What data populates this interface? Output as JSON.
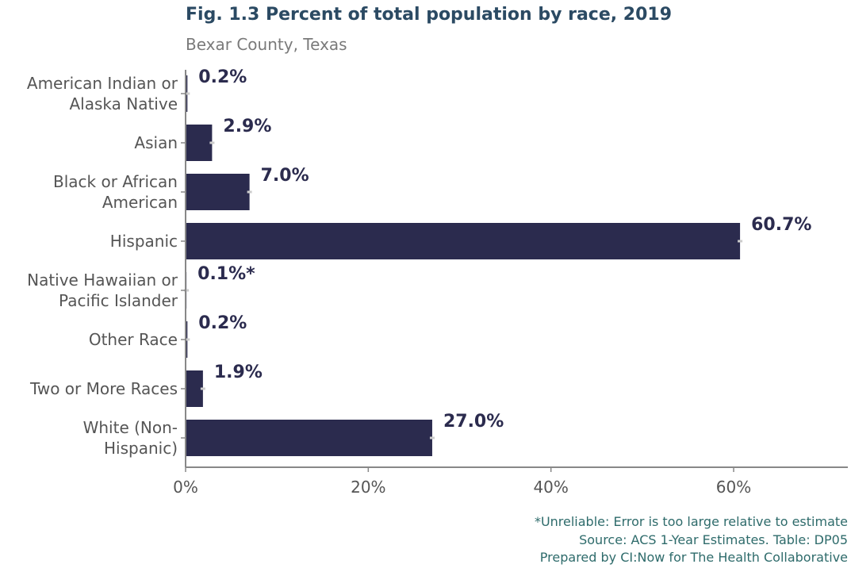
{
  "chart_data": {
    "type": "bar",
    "orientation": "horizontal",
    "title": "Fig. 1.3 Percent of total population by race, 2019",
    "subtitle": "Bexar County, Texas",
    "categories": [
      [
        "American Indian or",
        "Alaska Native"
      ],
      [
        "Asian"
      ],
      [
        "Black or African",
        "American"
      ],
      [
        "Hispanic"
      ],
      [
        "Native Hawaiian or",
        "Pacific Islander"
      ],
      [
        "Other Race"
      ],
      [
        "Two or More Races"
      ],
      [
        "White (Non-",
        "Hispanic)"
      ]
    ],
    "values": [
      0.2,
      2.9,
      7.0,
      60.7,
      0.1,
      0.2,
      1.9,
      27.0
    ],
    "data_labels": [
      "0.2%",
      "2.9%",
      "7.0%",
      "60.7%",
      "0.1%*",
      "0.2%",
      "1.9%",
      "27.0%"
    ],
    "x_ticks": [
      0,
      20,
      40,
      60
    ],
    "x_tick_labels": [
      "0%",
      "20%",
      "40%",
      "60%"
    ],
    "xlim": [
      0,
      72.5
    ],
    "grid": false,
    "legend": "none",
    "bar_color": "#2b2b4e",
    "label_color": "#2b2b4e",
    "error_bar_color": "#cccccc"
  },
  "captions": [
    "*Unreliable: Error is too large relative to estimate",
    "Source: ACS 1-Year Estimates. Table: DP05",
    "Prepared by CI:Now for The Health Collaborative"
  ]
}
